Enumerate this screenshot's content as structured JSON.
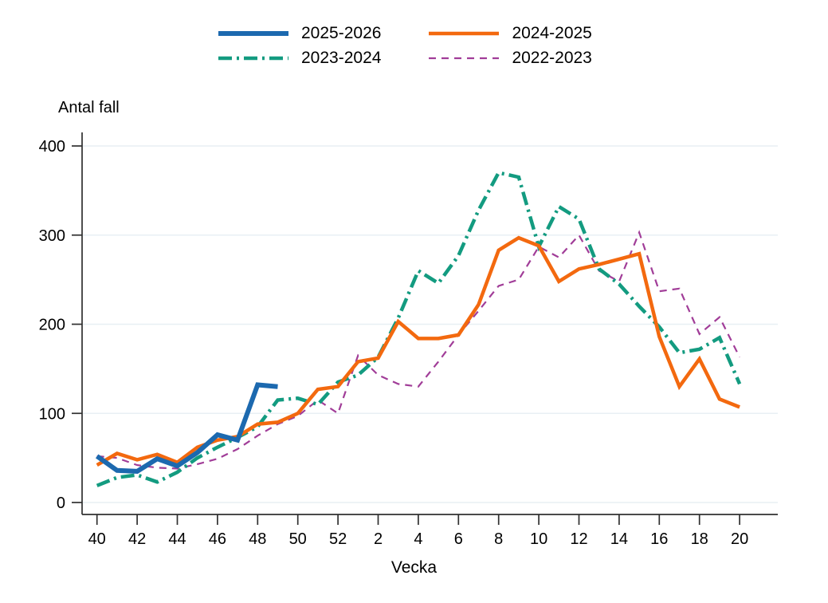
{
  "labels": {
    "y_axis_title": "Antal fall",
    "x_axis_title": "Vecka"
  },
  "legend": {
    "items": [
      {
        "label": "2025-2026"
      },
      {
        "label": "2024-2025"
      },
      {
        "label": "2023-2024"
      },
      {
        "label": "2022-2023"
      }
    ]
  },
  "chart_data": {
    "type": "line",
    "title": "",
    "ylabel": "Antal fall",
    "xlabel": "Vecka",
    "ylim": [
      0,
      400
    ],
    "grid": "horizontal",
    "grid_color": "#e8eff4",
    "axis_color": "#303030",
    "legend_position": "top",
    "y_ticks": [
      0,
      100,
      200,
      300,
      400
    ],
    "x_categories": [
      "40",
      "41",
      "42",
      "43",
      "44",
      "45",
      "46",
      "47",
      "48",
      "49",
      "50",
      "51",
      "52",
      "1",
      "2",
      "3",
      "4",
      "5",
      "6",
      "7",
      "8",
      "9",
      "10",
      "11",
      "12",
      "13",
      "14",
      "15",
      "16",
      "17",
      "18",
      "19",
      "20"
    ],
    "x_tick_labels": [
      "40",
      "42",
      "44",
      "46",
      "48",
      "50",
      "52",
      "2",
      "4",
      "6",
      "8",
      "10",
      "12",
      "14",
      "16",
      "18",
      "20"
    ],
    "draw_order": [
      3,
      2,
      1,
      0
    ],
    "series": [
      {
        "name": "2025-2026",
        "color": "#1c69af",
        "dash": "none",
        "width": 6,
        "values": [
          52,
          36,
          35,
          49,
          41,
          56,
          76,
          70,
          132,
          130,
          null,
          null,
          null,
          null,
          null,
          null,
          null,
          null,
          null,
          null,
          null,
          null,
          null,
          null,
          null,
          null,
          null,
          null,
          null,
          null,
          null,
          null,
          null
        ]
      },
      {
        "name": "2024-2025",
        "color": "#f3690f",
        "dash": "none",
        "width": 4.5,
        "values": [
          42,
          55,
          48,
          54,
          45,
          62,
          70,
          74,
          88,
          90,
          100,
          127,
          130,
          158,
          162,
          203,
          184,
          184,
          188,
          222,
          283,
          297,
          288,
          248,
          262,
          267,
          273,
          279,
          186,
          130,
          161,
          116,
          107
        ]
      },
      {
        "name": "2023-2024",
        "color": "#139b80",
        "dash": "17 6 3 6",
        "width": 4.5,
        "values": [
          19,
          28,
          31,
          23,
          34,
          50,
          62,
          73,
          85,
          115,
          117,
          110,
          135,
          143,
          163,
          207,
          260,
          246,
          277,
          328,
          370,
          365,
          287,
          332,
          318,
          262,
          245,
          220,
          197,
          168,
          172,
          185,
          133
        ]
      },
      {
        "name": "2022-2023",
        "color": "#a13d98",
        "dash": "9 7",
        "width": 2.2,
        "values": [
          52,
          50,
          42,
          39,
          38,
          43,
          49,
          60,
          75,
          88,
          97,
          115,
          100,
          165,
          143,
          133,
          130,
          158,
          188,
          215,
          243,
          250,
          287,
          275,
          300,
          260,
          248,
          303,
          237,
          240,
          189,
          208,
          163
        ]
      }
    ]
  }
}
